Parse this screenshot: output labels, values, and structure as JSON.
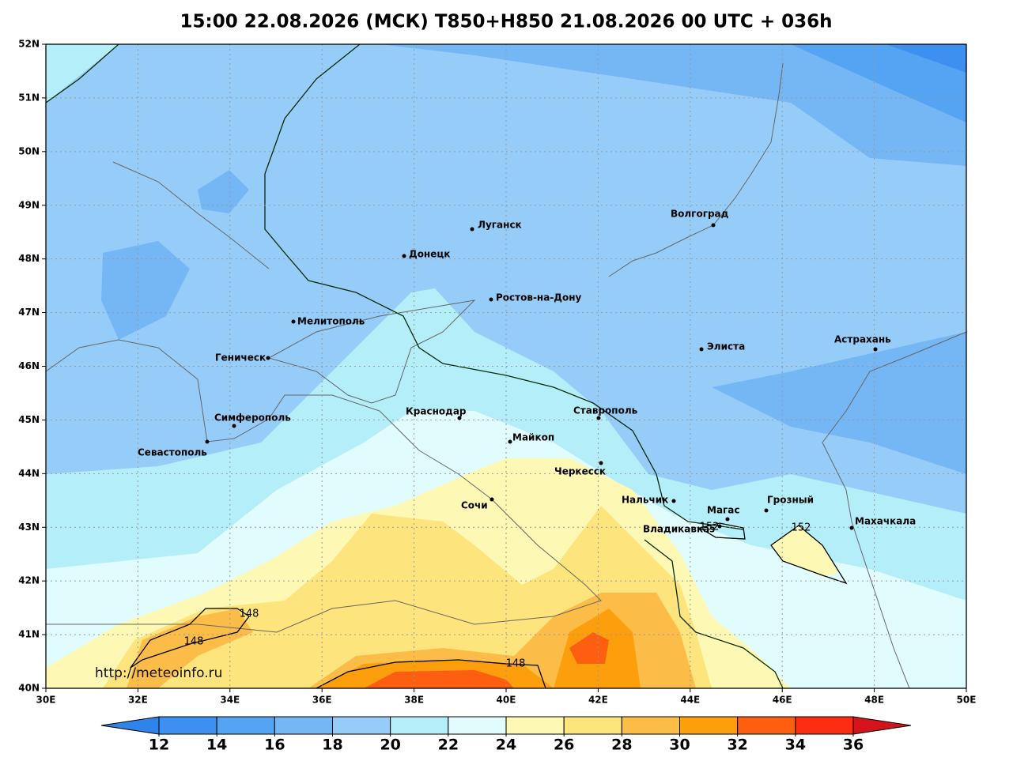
{
  "title": "15:00 22.08.2026 (МСК) T850+H850 21.08.2026 00 UTC + 036h",
  "map": {
    "lon_labels": [
      "30E",
      "32E",
      "34E",
      "36E",
      "38E",
      "40E",
      "42E",
      "44E",
      "46E",
      "48E",
      "50E"
    ],
    "lat_labels": [
      "52N",
      "51N",
      "50N",
      "49N",
      "48N",
      "47N",
      "46N",
      "45N",
      "44N",
      "43N",
      "42N",
      "41N",
      "40N"
    ],
    "cities": [
      {
        "name": "Волгоград"
      },
      {
        "name": "Луганск"
      },
      {
        "name": "Донецк"
      },
      {
        "name": "Ростов-на-Дону"
      },
      {
        "name": "Мелитополь"
      },
      {
        "name": "Геническ"
      },
      {
        "name": "Элиста"
      },
      {
        "name": "Астрахань"
      },
      {
        "name": "Симферополь"
      },
      {
        "name": "Севастополь"
      },
      {
        "name": "Краснодар"
      },
      {
        "name": "Ставрополь"
      },
      {
        "name": "Майкоп"
      },
      {
        "name": "Черкесск"
      },
      {
        "name": "Сочи"
      },
      {
        "name": "Нальчик"
      },
      {
        "name": "Магас"
      },
      {
        "name": "Грозный"
      },
      {
        "name": "Владикавказ"
      },
      {
        "name": "Махачкала"
      }
    ],
    "contour_labels": [
      "152",
      "152",
      "148",
      "148",
      "148"
    ],
    "credit": "http://meteoinfo.ru"
  },
  "colorbar": {
    "ticks": [
      12,
      14,
      16,
      18,
      20,
      22,
      24,
      26,
      28,
      30,
      32,
      34,
      36
    ],
    "colors": [
      "#2f84ec",
      "#3d90ef",
      "#55a4f3",
      "#75b6f5",
      "#96cdf8",
      "#b4eef8",
      "#e1fcfc",
      "#fdf8b4",
      "#fde47c",
      "#fcbd48",
      "#fd9f0d",
      "#fd5e10",
      "#fb2e12",
      "#d4141a"
    ]
  }
}
